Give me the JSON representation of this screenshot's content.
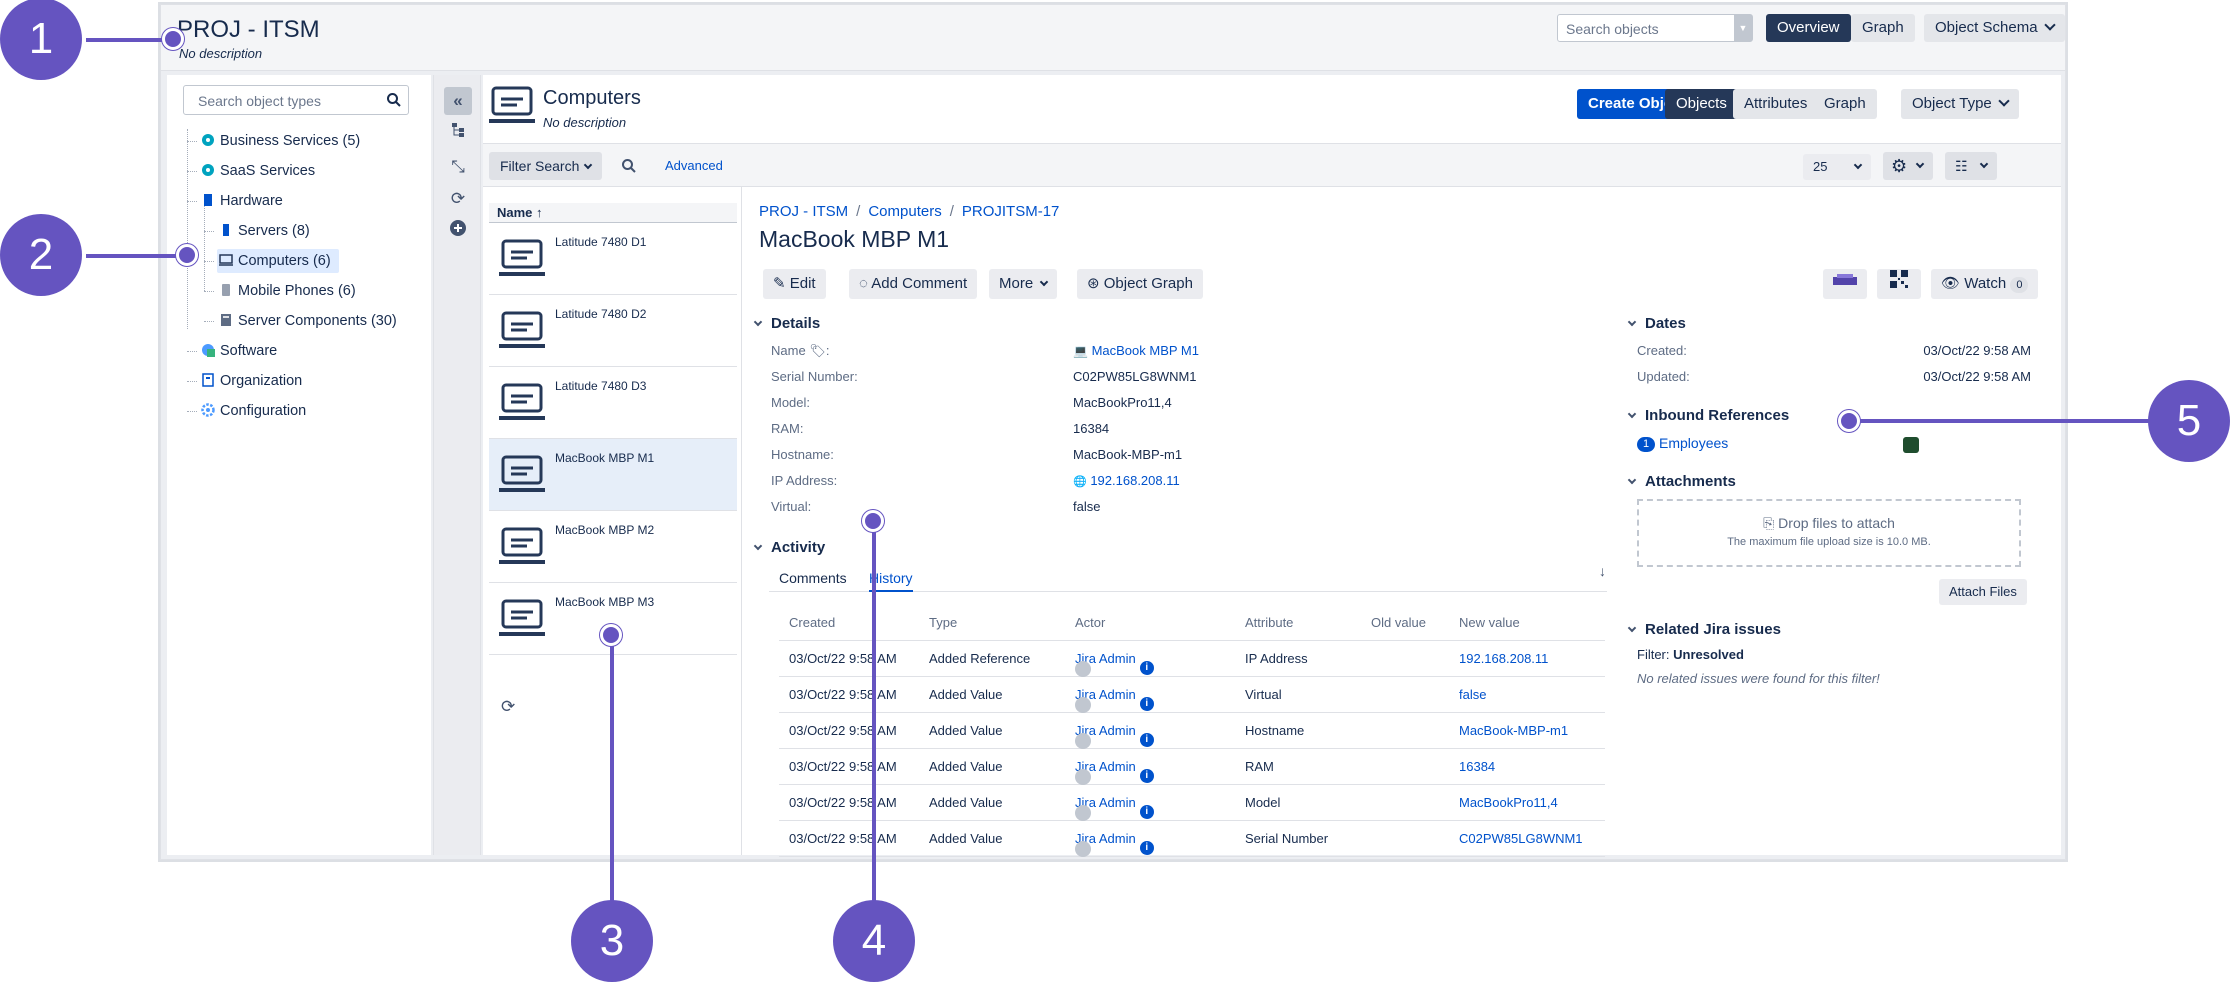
{
  "project": {
    "title": "PROJ - ITSM",
    "description": "No description"
  },
  "top": {
    "search_placeholder": "Search objects",
    "overview": "Overview",
    "graph": "Graph",
    "object_schema": "Object Schema"
  },
  "tree": {
    "search_placeholder": "Search object types",
    "items": [
      {
        "label": "Business Services (5)",
        "icon": "service-icon"
      },
      {
        "label": "SaaS Services",
        "icon": "service-icon"
      },
      {
        "label": "Hardware",
        "icon": "hardware-icon"
      },
      {
        "label": "Servers (8)",
        "icon": "server-icon"
      },
      {
        "label": "Computers (6)",
        "icon": "computer-icon"
      },
      {
        "label": "Mobile Phones (6)",
        "icon": "phone-icon"
      },
      {
        "label": "Server Components (30)",
        "icon": "server-component-icon"
      },
      {
        "label": "Software",
        "icon": "software-icon"
      },
      {
        "label": "Organization",
        "icon": "organization-icon"
      },
      {
        "label": "Configuration",
        "icon": "configuration-icon"
      }
    ]
  },
  "object_type": {
    "title": "Computers",
    "description": "No description",
    "create_button": "Create Object",
    "tabs": [
      "Objects",
      "Attributes",
      "Graph"
    ],
    "object_type_button": "Object Type"
  },
  "filter": {
    "filter_search": "Filter Search",
    "advanced": "Advanced",
    "page_size": "25"
  },
  "list": {
    "header": "Name",
    "items": [
      "Latitude 7480 D1",
      "Latitude 7480 D2",
      "Latitude 7480 D3",
      "MacBook MBP M1",
      "MacBook MBP M2",
      "MacBook MBP M3"
    ]
  },
  "detail": {
    "breadcrumb": [
      "PROJ - ITSM",
      "Computers",
      "PROJITSM-17"
    ],
    "title": "MacBook MBP M1",
    "buttons": {
      "edit": "Edit",
      "add_comment": "Add Comment",
      "more": "More",
      "object_graph": "Object Graph",
      "watch": "Watch",
      "watch_count": "0"
    },
    "details_header": "Details",
    "attributes": [
      {
        "label": "Name",
        "value": "MacBook MBP M1"
      },
      {
        "label": "Serial Number:",
        "value": "C02PW85LG8WNM1"
      },
      {
        "label": "Model:",
        "value": "MacBookPro11,4"
      },
      {
        "label": "RAM:",
        "value": "16384"
      },
      {
        "label": "Hostname:",
        "value": "MacBook-MBP-m1"
      },
      {
        "label": "IP Address:",
        "value": "192.168.208.11"
      },
      {
        "label": "Virtual:",
        "value": "false"
      }
    ],
    "activity_header": "Activity",
    "activity_tabs": [
      "Comments",
      "History"
    ],
    "history_columns": [
      "Created",
      "Type",
      "Actor",
      "Attribute",
      "Old value",
      "New value"
    ],
    "history": [
      {
        "created": "03/Oct/22 9:58 AM",
        "type": "Added Reference",
        "actor": "Jira Admin",
        "attribute": "IP Address",
        "old": "",
        "new": "192.168.208.11"
      },
      {
        "created": "03/Oct/22 9:58 AM",
        "type": "Added Value",
        "actor": "Jira Admin",
        "attribute": "Virtual",
        "old": "",
        "new": "false"
      },
      {
        "created": "03/Oct/22 9:58 AM",
        "type": "Added Value",
        "actor": "Jira Admin",
        "attribute": "Hostname",
        "old": "",
        "new": "MacBook-MBP-m1"
      },
      {
        "created": "03/Oct/22 9:58 AM",
        "type": "Added Value",
        "actor": "Jira Admin",
        "attribute": "RAM",
        "old": "",
        "new": "16384"
      },
      {
        "created": "03/Oct/22 9:58 AM",
        "type": "Added Value",
        "actor": "Jira Admin",
        "attribute": "Model",
        "old": "",
        "new": "MacBookPro11,4"
      },
      {
        "created": "03/Oct/22 9:58 AM",
        "type": "Added Value",
        "actor": "Jira Admin",
        "attribute": "Serial Number",
        "old": "",
        "new": "C02PW85LG8WNM1"
      }
    ]
  },
  "side": {
    "dates_header": "Dates",
    "created_label": "Created:",
    "created_value": "03/Oct/22 9:58 AM",
    "updated_label": "Updated:",
    "updated_value": "03/Oct/22 9:58 AM",
    "inbound_header": "Inbound References",
    "inbound_count": "1",
    "inbound_label": "Employees",
    "attachments_header": "Attachments",
    "drop_text": "Drop files to attach",
    "drop_sub": "The maximum file upload size is 10.0 MB.",
    "attach_button": "Attach Files",
    "jira_header": "Related Jira issues",
    "filter_label": "Filter:",
    "filter_value": "Unresolved",
    "no_issues": "No related issues were found for this filter!"
  },
  "callouts": [
    "1",
    "2",
    "3",
    "4",
    "5"
  ],
  "colors": {
    "accent": "#6554c0",
    "primary": "#0052cc",
    "dark": "#253858"
  }
}
